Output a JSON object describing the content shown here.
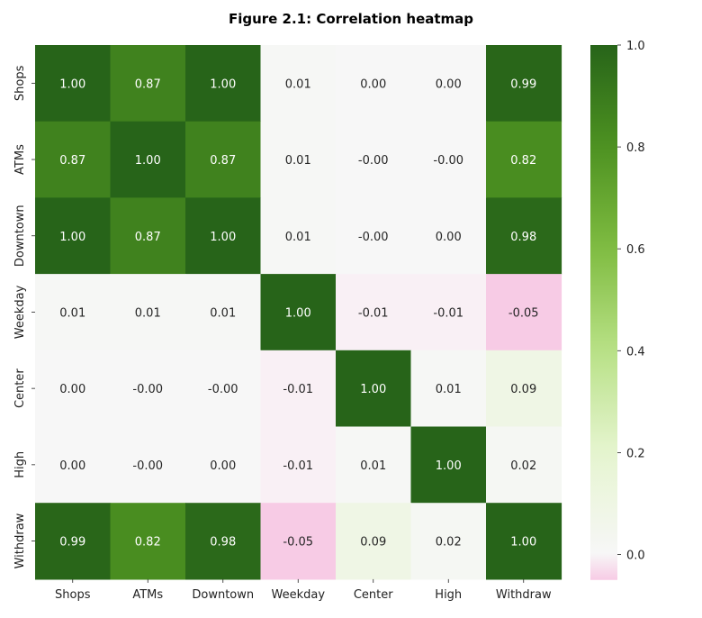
{
  "chart_data": {
    "type": "heatmap",
    "title": "Figure 2.1: Correlation heatmap",
    "x_labels": [
      "Shops",
      "ATMs",
      "Downtown",
      "Weekday",
      "Center",
      "High",
      "Withdraw"
    ],
    "y_labels": [
      "Shops",
      "ATMs",
      "Downtown",
      "Weekday",
      "Center",
      "High",
      "Withdraw"
    ],
    "values": [
      [
        1.0,
        0.87,
        1.0,
        0.01,
        0.0,
        0.0,
        0.99
      ],
      [
        0.87,
        1.0,
        0.87,
        0.01,
        -0.0,
        -0.0,
        0.82
      ],
      [
        1.0,
        0.87,
        1.0,
        0.01,
        -0.0,
        0.0,
        0.98
      ],
      [
        0.01,
        0.01,
        0.01,
        1.0,
        -0.01,
        -0.01,
        -0.05
      ],
      [
        0.0,
        -0.0,
        -0.0,
        -0.01,
        1.0,
        0.01,
        0.09
      ],
      [
        0.0,
        -0.0,
        0.0,
        -0.01,
        0.01,
        1.0,
        0.02
      ],
      [
        0.99,
        0.82,
        0.98,
        -0.05,
        0.09,
        0.02,
        1.0
      ]
    ],
    "value_labels": [
      [
        "1.00",
        "0.87",
        "1.00",
        "0.01",
        "0.00",
        "0.00",
        "0.99"
      ],
      [
        "0.87",
        "1.00",
        "0.87",
        "0.01",
        "-0.00",
        "-0.00",
        "0.82"
      ],
      [
        "1.00",
        "0.87",
        "1.00",
        "0.01",
        "-0.00",
        "0.00",
        "0.98"
      ],
      [
        "0.01",
        "0.01",
        "0.01",
        "1.00",
        "-0.01",
        "-0.01",
        "-0.05"
      ],
      [
        "0.00",
        "-0.00",
        "-0.00",
        "-0.01",
        "1.00",
        "0.01",
        "0.09"
      ],
      [
        "0.00",
        "-0.00",
        "0.00",
        "-0.01",
        "0.01",
        "1.00",
        "0.02"
      ],
      [
        "0.99",
        "0.82",
        "0.98",
        "-0.05",
        "0.09",
        "0.02",
        "1.00"
      ]
    ],
    "colorbar": {
      "range": [
        -0.05,
        1.0
      ],
      "ticks": [
        0.0,
        0.2,
        0.4,
        0.6,
        0.8,
        1.0
      ],
      "tick_labels": [
        "0.0",
        "0.2",
        "0.4",
        "0.6",
        "0.8",
        "1.0"
      ],
      "colormap": "PiYG"
    },
    "colors": {
      "high": "#276419",
      "mid_high": "#4d9221",
      "mid": "#7fbc41",
      "light": "#b8e186",
      "pale": "#e6f5d0",
      "neutral": "#f7f7f7",
      "pink": "#fde0ef"
    }
  }
}
